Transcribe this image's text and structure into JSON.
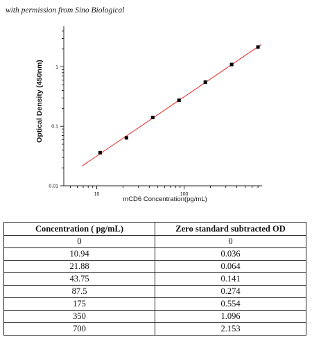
{
  "attribution": "with permission from Sino Biological",
  "chart_data": {
    "type": "scatter",
    "xlabel": "mCD6  Concentration(pg/mL)",
    "ylabel": "Optical Density (450nm)",
    "xscale": "log",
    "yscale": "log",
    "xlim": [
      4.2,
      780
    ],
    "ylim": [
      0.01,
      4.8
    ],
    "x_ticks": [
      10,
      100
    ],
    "x_tick_labels": [
      "10",
      "100"
    ],
    "y_ticks": [
      0.01,
      0.1,
      1
    ],
    "y_tick_labels": [
      "0.01",
      "0.1",
      "1"
    ],
    "grid": false,
    "points": {
      "x": [
        10.94,
        21.88,
        43.75,
        87.5,
        175,
        350,
        700
      ],
      "y": [
        0.036,
        0.064,
        0.141,
        0.274,
        0.554,
        1.096,
        2.153
      ]
    },
    "fit_line": {
      "color": "#e32626",
      "x_range": [
        6.8,
        760
      ]
    },
    "marker_color": "#000000"
  },
  "table": {
    "headers": [
      "Concentration ( pg/mL)",
      "Zero standard subtracted OD"
    ],
    "rows": [
      [
        "0",
        "0"
      ],
      [
        "10.94",
        "0.036"
      ],
      [
        "21.88",
        "0.064"
      ],
      [
        "43.75",
        "0.141"
      ],
      [
        "87.5",
        "0.274"
      ],
      [
        "175",
        "0.554"
      ],
      [
        "350",
        "1.096"
      ],
      [
        "700",
        "2.153"
      ]
    ]
  }
}
